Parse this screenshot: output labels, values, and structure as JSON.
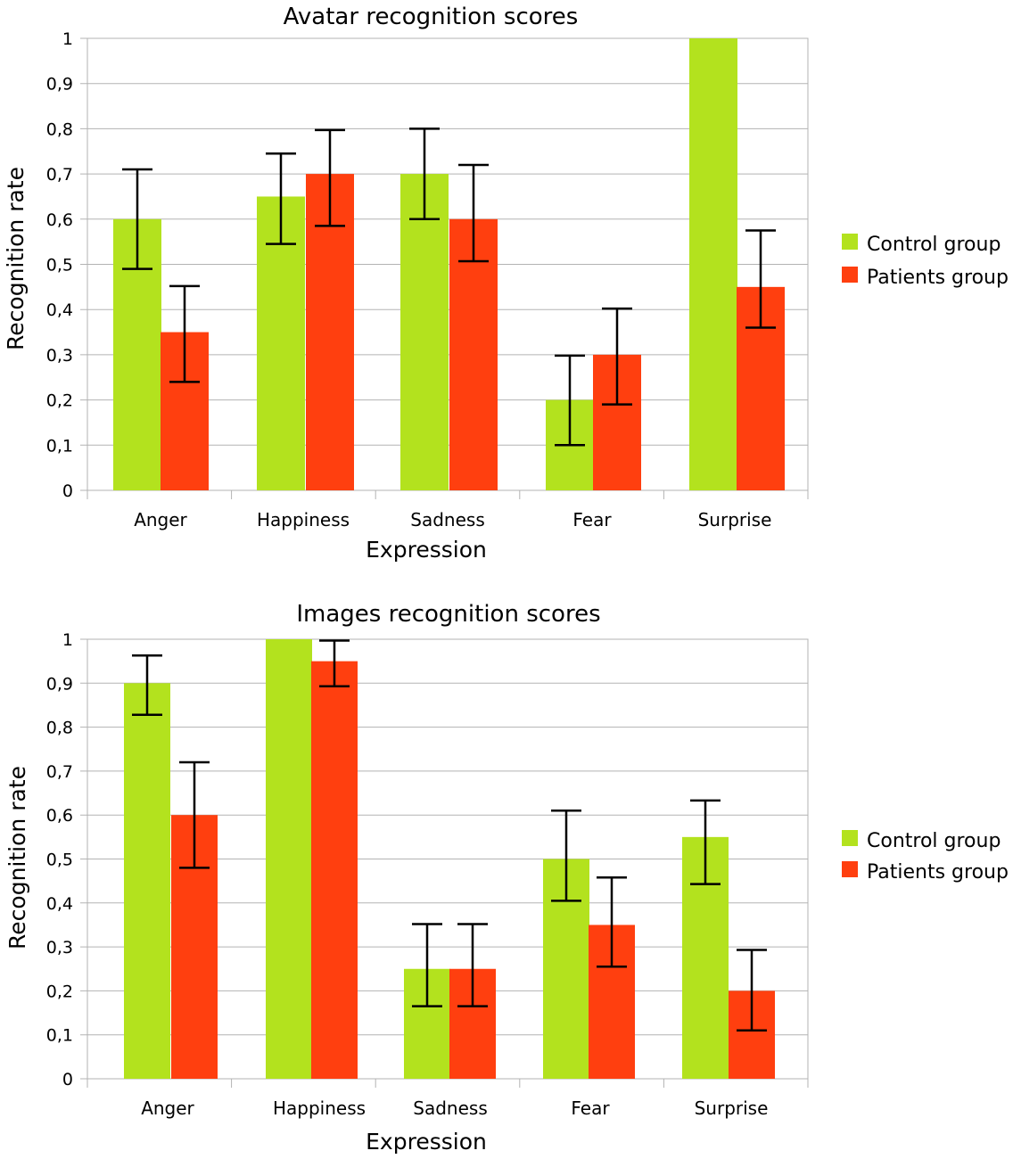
{
  "colors": {
    "control": "#b3e21e",
    "patients": "#ff3f0f"
  },
  "chart_data": [
    {
      "type": "bar",
      "title": "Avatar recognition scores",
      "xlabel": "Expression",
      "ylabel": "Recognition rate",
      "ylim": [
        0,
        1
      ],
      "yticks": [
        "0",
        "0,1",
        "0,2",
        "0,3",
        "0,4",
        "0,5",
        "0,6",
        "0,7",
        "0,8",
        "0,9",
        "1"
      ],
      "categories": [
        "Anger",
        "Happiness",
        "Sadness",
        "Fear",
        "Surprise"
      ],
      "series": [
        {
          "name": "Control group",
          "values": [
            0.6,
            0.65,
            0.7,
            0.2,
            1.0
          ],
          "err_low": [
            0.49,
            0.545,
            0.6,
            0.1,
            null
          ],
          "err_high": [
            0.71,
            0.745,
            0.8,
            0.298,
            null
          ]
        },
        {
          "name": "Patients group",
          "values": [
            0.35,
            0.7,
            0.6,
            0.3,
            0.45
          ],
          "err_low": [
            0.24,
            0.585,
            0.507,
            0.19,
            0.36
          ],
          "err_high": [
            0.452,
            0.797,
            0.72,
            0.402,
            0.575
          ]
        }
      ],
      "legend": "right"
    },
    {
      "type": "bar",
      "title": "Images recognition scores",
      "xlabel": "Expression",
      "ylabel": "Recognition rate",
      "ylim": [
        0,
        1
      ],
      "yticks": [
        "0",
        "0,1",
        "0,2",
        "0,3",
        "0,4",
        "0,5",
        "0,6",
        "0,7",
        "0,8",
        "0,9",
        "1"
      ],
      "categories": [
        "Anger",
        "Happiness",
        "Sadness",
        "Fear",
        "Surprise"
      ],
      "series": [
        {
          "name": "Control group",
          "values": [
            0.9,
            1.0,
            0.25,
            0.5,
            0.55
          ],
          "err_low": [
            0.828,
            null,
            0.165,
            0.405,
            0.443
          ],
          "err_high": [
            0.963,
            null,
            0.352,
            0.61,
            0.633
          ]
        },
        {
          "name": "Patients group",
          "values": [
            0.6,
            0.95,
            0.25,
            0.35,
            0.2
          ],
          "err_low": [
            0.48,
            0.893,
            0.165,
            0.255,
            0.11
          ],
          "err_high": [
            0.72,
            0.997,
            0.352,
            0.458,
            0.293
          ]
        }
      ],
      "legend": "right"
    }
  ]
}
